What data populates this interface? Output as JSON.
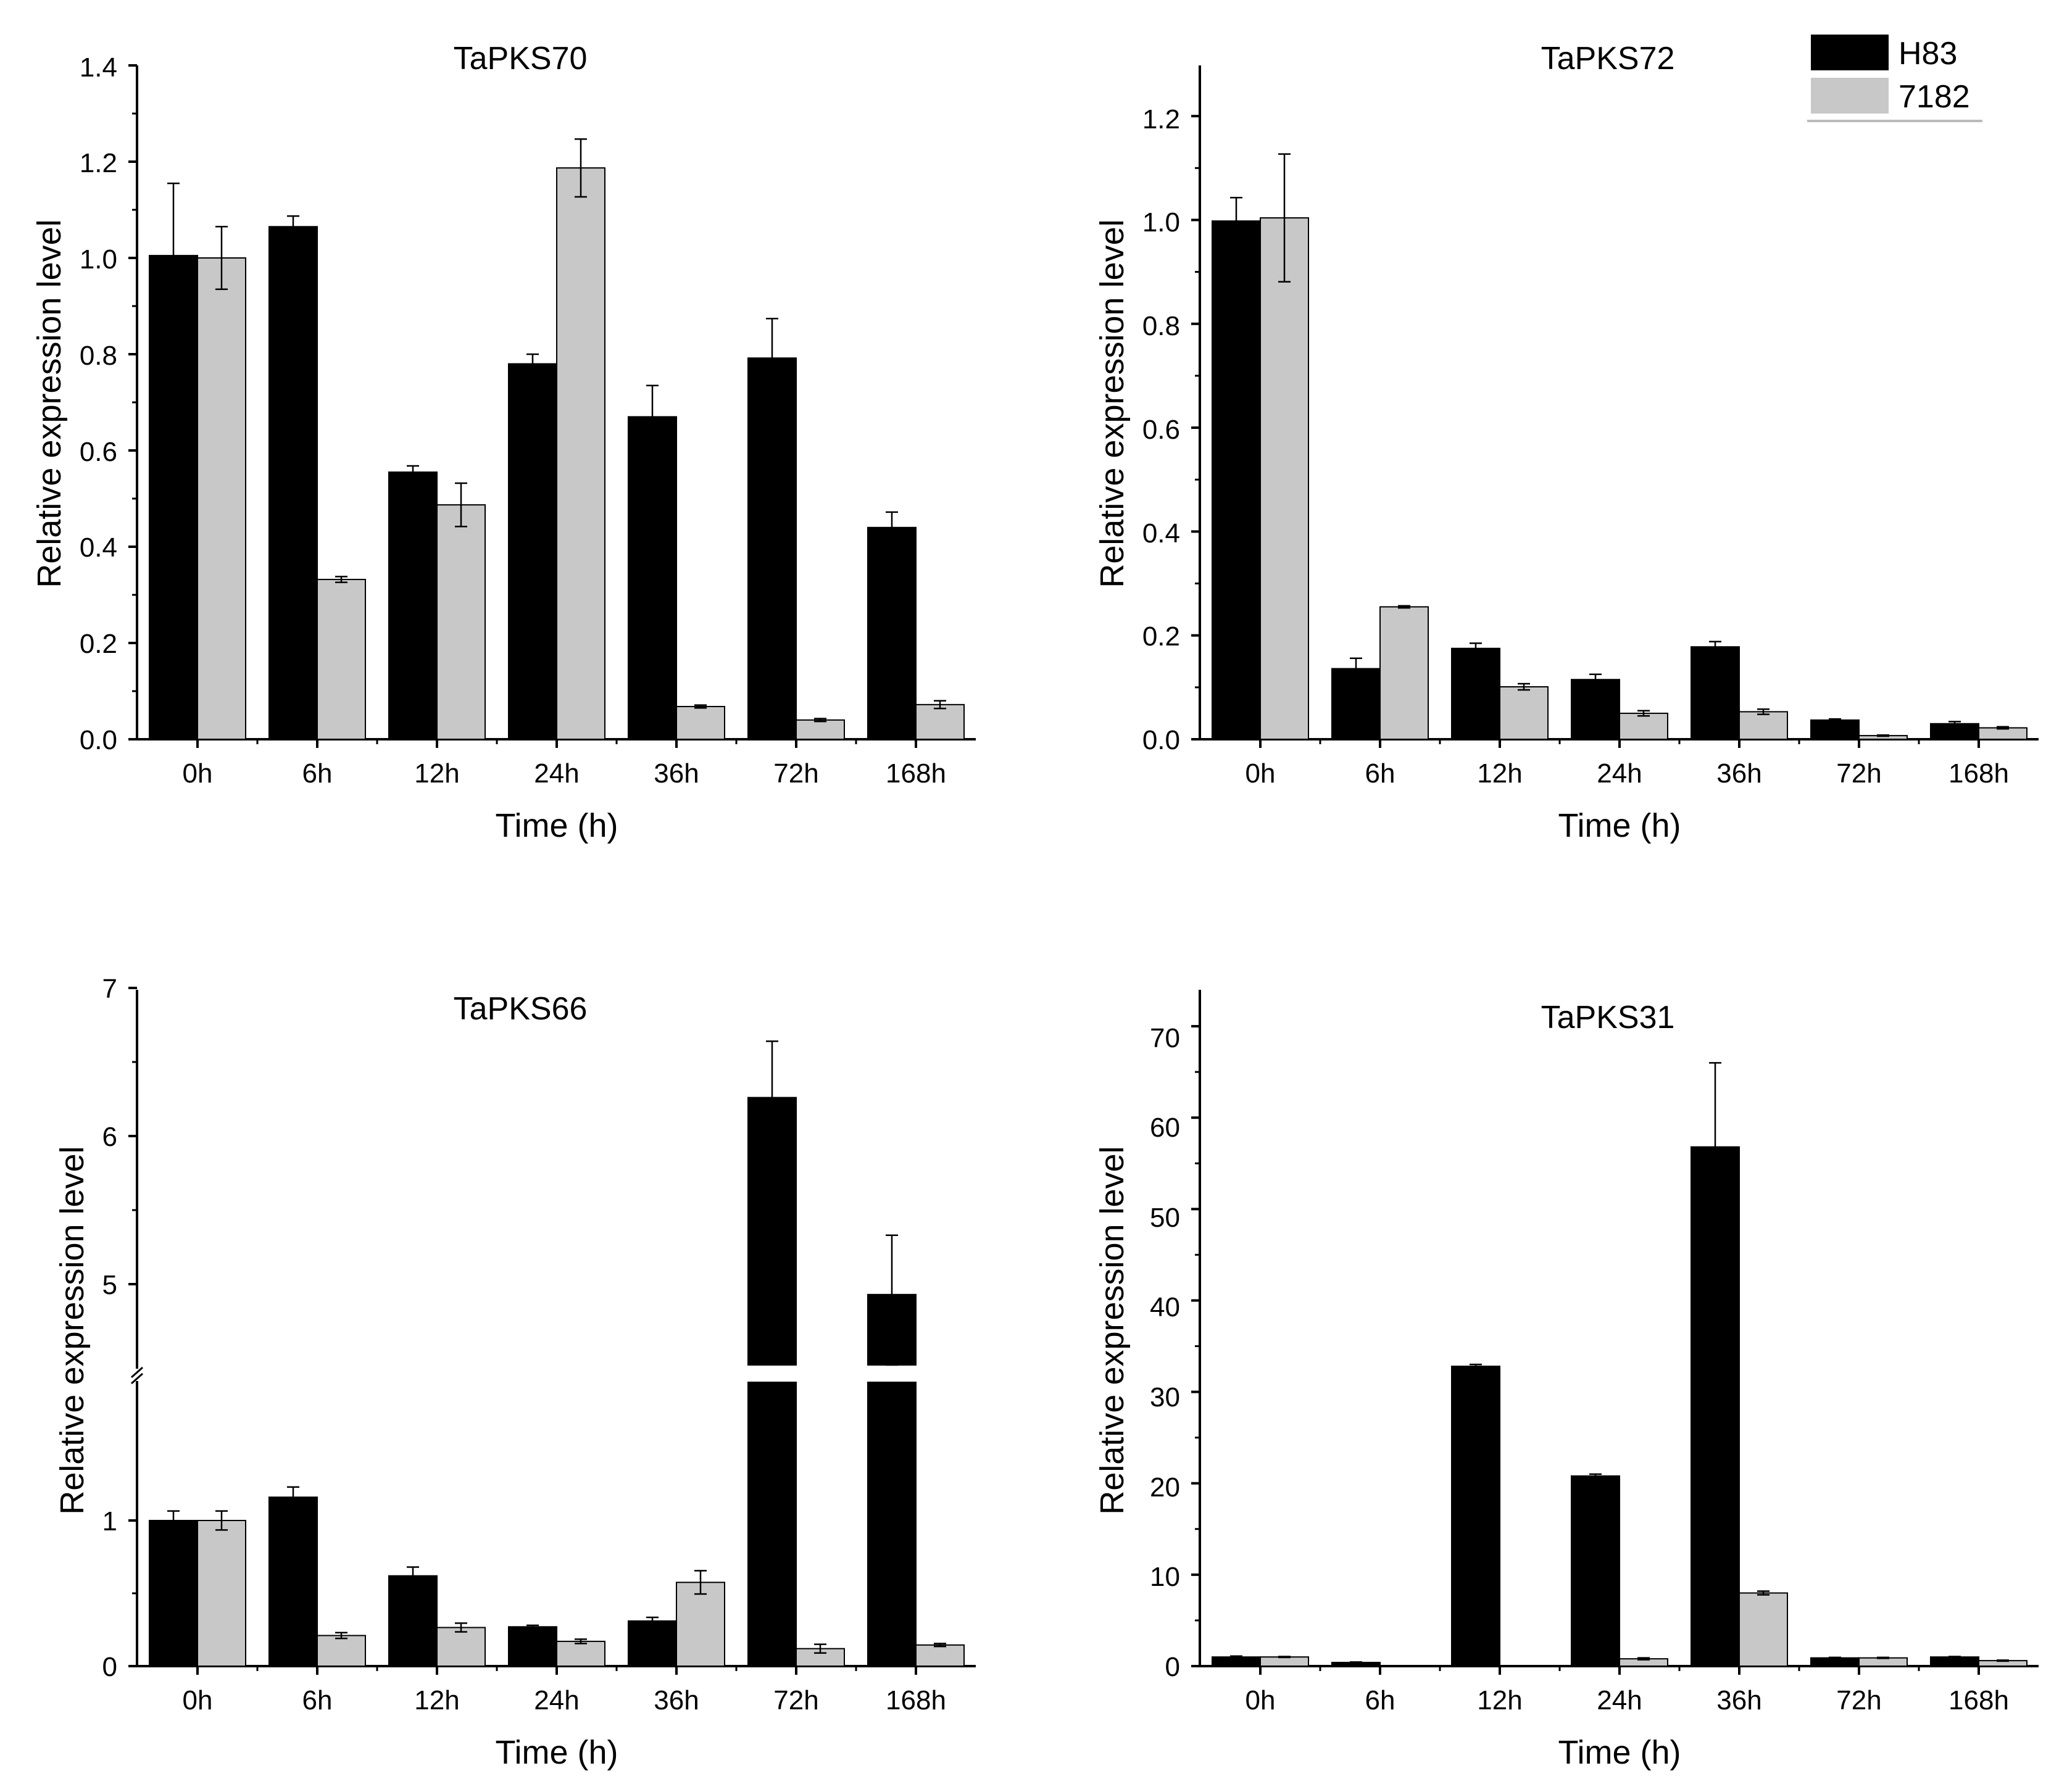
{
  "legend": {
    "items": [
      {
        "name": "H83",
        "color": "#000000"
      },
      {
        "name": "7182",
        "color": "#c8c8c8"
      }
    ]
  },
  "chart_data": [
    {
      "type": "bar",
      "title": "TaPKS70",
      "xlabel": "Time (h)",
      "ylabel": "Relative expression level",
      "categories": [
        "0h",
        "6h",
        "12h",
        "24h",
        "36h",
        "72h",
        "168h"
      ],
      "ylim": [
        0,
        1.4
      ],
      "yticks": [
        0.0,
        0.2,
        0.4,
        0.6,
        0.8,
        1.0,
        1.2,
        1.4
      ],
      "ytick_labels": [
        "0.0",
        "0.2",
        "0.4",
        "0.6",
        "0.8",
        "1.0",
        "1.2",
        "1.4"
      ],
      "series": [
        {
          "name": "H83",
          "color": "#000000",
          "values": [
            1.005,
            1.065,
            0.555,
            0.78,
            0.67,
            0.792,
            0.44
          ],
          "errors": [
            0.15,
            0.022,
            0.013,
            0.02,
            0.065,
            0.082,
            0.032
          ]
        },
        {
          "name": "7182",
          "color": "#c8c8c8",
          "values": [
            1.0,
            0.332,
            0.487,
            1.187,
            0.068,
            0.04,
            0.072
          ],
          "errors": [
            0.065,
            0.006,
            0.045,
            0.06,
            0.003,
            0.003,
            0.008
          ]
        }
      ]
    },
    {
      "type": "bar",
      "title": "TaPKS72",
      "xlabel": "Time (h)",
      "ylabel": "Relative expression level",
      "categories": [
        "0h",
        "6h",
        "12h",
        "24h",
        "36h",
        "72h",
        "168h"
      ],
      "ylim": [
        0,
        1.3
      ],
      "yticks": [
        0.0,
        0.2,
        0.4,
        0.6,
        0.8,
        1.0,
        1.2
      ],
      "ytick_labels": [
        "0.0",
        "0.2",
        "0.4",
        "0.6",
        "0.8",
        "1.0",
        "1.2"
      ],
      "series": [
        {
          "name": "H83",
          "color": "#000000",
          "values": [
            0.998,
            0.136,
            0.175,
            0.115,
            0.178,
            0.037,
            0.03
          ],
          "errors": [
            0.045,
            0.02,
            0.01,
            0.01,
            0.01,
            0.002,
            0.004
          ]
        },
        {
          "name": "7182",
          "color": "#c8c8c8",
          "values": [
            1.004,
            0.255,
            0.101,
            0.05,
            0.053,
            0.007,
            0.022
          ],
          "errors": [
            0.123,
            0.002,
            0.006,
            0.005,
            0.005,
            0.001,
            0.002
          ]
        }
      ]
    },
    {
      "type": "bar",
      "title": "TaPKS66",
      "xlabel": "Time (h)",
      "ylabel": "Relative expression level",
      "categories": [
        "0h",
        "6h",
        "12h",
        "24h",
        "36h",
        "72h",
        "168h"
      ],
      "ylim": [
        0,
        7
      ],
      "axis_break": {
        "lower_max": 1.95,
        "upper_min": 4.55
      },
      "yticks": [
        0,
        1,
        5,
        6,
        7
      ],
      "ytick_labels": [
        "0",
        "1",
        "5",
        "6",
        "7"
      ],
      "series": [
        {
          "name": "H83",
          "color": "#000000",
          "values": [
            1.0,
            1.16,
            0.62,
            0.27,
            0.31,
            6.26,
            4.93
          ],
          "errors": [
            0.065,
            0.07,
            0.06,
            0.01,
            0.025,
            0.38,
            0.4
          ]
        },
        {
          "name": "7182",
          "color": "#c8c8c8",
          "values": [
            1.0,
            0.21,
            0.265,
            0.17,
            0.575,
            0.12,
            0.145
          ],
          "errors": [
            0.065,
            0.02,
            0.03,
            0.015,
            0.08,
            0.03,
            0.01
          ]
        }
      ]
    },
    {
      "type": "bar",
      "title": "TaPKS31",
      "xlabel": "Time (h)",
      "ylabel": "Relative expression level",
      "categories": [
        "0h",
        "6h",
        "12h",
        "24h",
        "36h",
        "72h",
        "168h"
      ],
      "ylim": [
        0,
        75
      ],
      "yticks": [
        0,
        10,
        20,
        30,
        40,
        50,
        60,
        70
      ],
      "ytick_labels": [
        "0",
        "10",
        "20",
        "30",
        "40",
        "50",
        "60",
        "70"
      ],
      "series": [
        {
          "name": "H83",
          "color": "#000000",
          "values": [
            1.0,
            0.4,
            32.8,
            20.8,
            56.8,
            0.9,
            1.0
          ],
          "errors": [
            0.1,
            0.05,
            0.2,
            0.2,
            9.2,
            0.05,
            0.05
          ]
        },
        {
          "name": "7182",
          "color": "#c8c8c8",
          "values": [
            1.0,
            0.0,
            0.0,
            0.8,
            8.0,
            0.9,
            0.6
          ],
          "errors": [
            0.05,
            0.0,
            0.0,
            0.1,
            0.2,
            0.05,
            0.05
          ]
        }
      ]
    }
  ]
}
